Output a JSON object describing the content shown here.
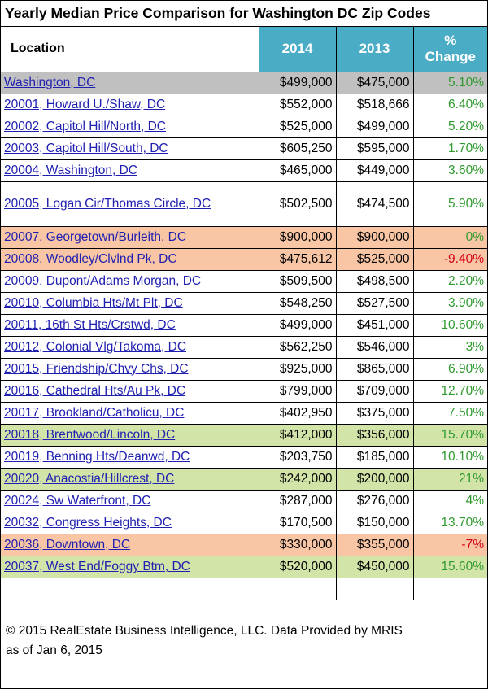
{
  "title": "Yearly Median Price Comparison for Washington DC Zip Codes",
  "headers": {
    "location": "Location",
    "y2014": "2014",
    "y2013": "2013",
    "change_line1": "%",
    "change_line2": "Change"
  },
  "rows": [
    {
      "location": "Washington, DC",
      "p2014": "$499,000",
      "p2013": "$475,000",
      "change": "5.10%",
      "highlight": "gray"
    },
    {
      "location": "20001, Howard U./Shaw, DC",
      "p2014": "$552,000",
      "p2013": "$518,666",
      "change": "6.40%"
    },
    {
      "location": "20002, Capitol Hill/North, DC",
      "p2014": "$525,000",
      "p2013": "$499,000",
      "change": "5.20%"
    },
    {
      "location": "20003, Capitol Hill/South, DC",
      "p2014": "$605,250",
      "p2013": "$595,000",
      "change": "1.70%"
    },
    {
      "location": "20004, Washington, DC",
      "p2014": "$465,000",
      "p2013": "$449,000",
      "change": "3.60%"
    },
    {
      "location": "20005, Logan Cir/Thomas Circle, DC",
      "p2014": "$502,500",
      "p2013": "$474,500",
      "change": "5.90%",
      "tall": true
    },
    {
      "location": "20007, Georgetown/Burleith, DC",
      "p2014": "$900,000",
      "p2013": "$900,000",
      "change": "0%",
      "highlight": "orange"
    },
    {
      "location": "20008, Woodley/Clvlnd Pk, DC",
      "p2014": "$475,612",
      "p2013": "$525,000",
      "change": "-9.40%",
      "highlight": "orange",
      "negative": true
    },
    {
      "location": "20009, Dupont/Adams Morgan, DC",
      "p2014": "$509,500",
      "p2013": "$498,500",
      "change": "2.20%"
    },
    {
      "location": "20010, Columbia Hts/Mt Plt, DC",
      "p2014": "$548,250",
      "p2013": "$527,500",
      "change": "3.90%"
    },
    {
      "location": "20011, 16th St Hts/Crstwd, DC",
      "p2014": "$499,000",
      "p2013": "$451,000",
      "change": "10.60%"
    },
    {
      "location": "20012, Colonial Vlg/Takoma, DC",
      "p2014": "$562,250",
      "p2013": "$546,000",
      "change": "3%"
    },
    {
      "location": "20015, Friendship/Chvy Chs, DC",
      "p2014": "$925,000",
      "p2013": "$865,000",
      "change": "6.90%"
    },
    {
      "location": "20016, Cathedral Hts/Au Pk, DC",
      "p2014": "$799,000",
      "p2013": "$709,000",
      "change": "12.70%"
    },
    {
      "location": "20017, Brookland/Catholicu, DC",
      "p2014": "$402,950",
      "p2013": "$375,000",
      "change": "7.50%"
    },
    {
      "location": "20018, Brentwood/Lincoln, DC",
      "p2014": "$412,000",
      "p2013": "$356,000",
      "change": "15.70%",
      "highlight": "green"
    },
    {
      "location": "20019, Benning Hts/Deanwd, DC",
      "p2014": "$203,750",
      "p2013": "$185,000",
      "change": "10.10%"
    },
    {
      "location": "20020, Anacostia/Hillcrest, DC",
      "p2014": "$242,000",
      "p2013": "$200,000",
      "change": "21%",
      "highlight": "green"
    },
    {
      "location": "20024, Sw Waterfront, DC",
      "p2014": "$287,000",
      "p2013": "$276,000",
      "change": "4%"
    },
    {
      "location": "20032, Congress Heights, DC",
      "p2014": "$170,500",
      "p2013": "$150,000",
      "change": "13.70%"
    },
    {
      "location": "20036, Downtown, DC",
      "p2014": "$330,000",
      "p2013": "$355,000",
      "change": "-7%",
      "highlight": "orange",
      "negative": true
    },
    {
      "location": "20037, West End/Foggy Btm, DC",
      "p2014": "$520,000",
      "p2013": "$450,000",
      "change": "15.60%",
      "highlight": "green"
    }
  ],
  "footer": {
    "line1": "© 2015 RealEstate Business Intelligence, LLC. Data Provided by MRIS",
    "line2": "as of Jan 6, 2015"
  },
  "colors": {
    "header_blue": "#4bacc6",
    "gray_row": "#c0c0c0",
    "orange_row": "#f8c6a4",
    "green_row": "#d3e4a9",
    "positive_text": "#2e9a2e",
    "negative_text": "#d4001a",
    "link_text": "#1f1fb0"
  }
}
